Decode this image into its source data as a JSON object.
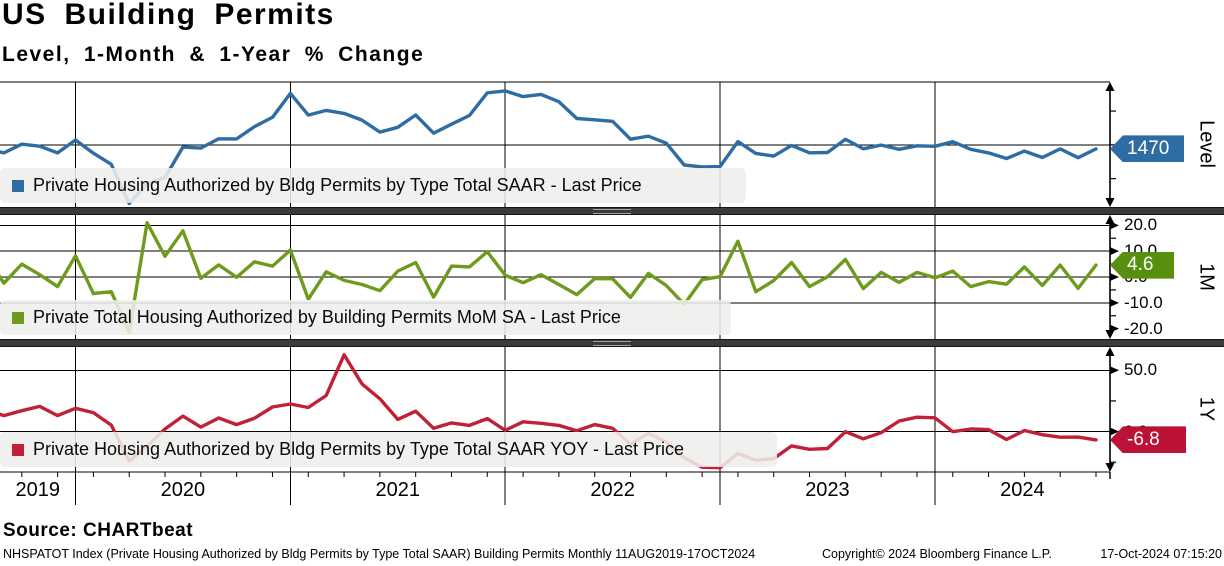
{
  "header": {
    "title": "US Building Permits",
    "subtitle": "Level, 1-Month & 1-Year % Change"
  },
  "source": {
    "label": "Source: CHARTbeat"
  },
  "footer": {
    "security_line": "NHSPATOT Index (Private Housing Authorized by Bldg Permits by Type Total SAAR) Building Permits  Monthly 11AUG2019-17OCT2024",
    "copyright": "Copyright© 2024 Bloomberg Finance L.P.",
    "timestamp": "17-Oct-2024 07:15:20"
  },
  "x_axis": {
    "years": [
      "2019",
      "2020",
      "2021",
      "2022",
      "2023",
      "2024"
    ],
    "range": "11AUG2019-17OCT2024",
    "frequency": "Monthly"
  },
  "chart_data": [
    {
      "type": "line",
      "series_name": "level-line",
      "legend": "Private Housing Authorized by Bldg Permits by Type Total SAAR - Last Price",
      "axis_title": "Level",
      "color": "#2e6da4",
      "tag_color": "#2e6da4",
      "last_price": 1470,
      "last_price_label": "1470",
      "ylim": [
        1040,
        1965
      ],
      "gridlines": [
        1500
      ],
      "ticks": [
        {
          "v": 1750
        },
        {
          "v": 1500
        },
        {
          "v": 1250
        }
      ],
      "x_start": "2019-08",
      "x_end": "2024-10",
      "values": [
        1470,
        1440,
        1505,
        1490,
        1440,
        1536,
        1438,
        1356,
        1066,
        1212,
        1258,
        1483,
        1476,
        1545,
        1544,
        1635,
        1704,
        1881,
        1720,
        1755,
        1733,
        1683,
        1594,
        1630,
        1721,
        1586,
        1653,
        1717,
        1885,
        1899,
        1857,
        1873,
        1819,
        1695,
        1685,
        1674,
        1542,
        1564,
        1512,
        1351,
        1337,
        1339,
        1524,
        1437,
        1417,
        1496,
        1441,
        1443,
        1541,
        1471,
        1498,
        1467,
        1493,
        1489,
        1523,
        1467,
        1440,
        1399,
        1454,
        1406,
        1470,
        1405,
        1470
      ]
    },
    {
      "type": "line",
      "series_name": "mom-line",
      "legend": "Private Total Housing Authorized by Building Permits MoM SA - Last Price",
      "axis_title": "1M",
      "color": "#6e9b1e",
      "tag_color": "#578f0e",
      "last_price": 4.6,
      "last_price_label": "4.6",
      "ylim": [
        -24,
        24
      ],
      "gridlines": [
        20,
        10,
        0,
        -10
      ],
      "ticks": [
        {
          "v": 20,
          "label": "20.0"
        },
        {
          "v": 15
        },
        {
          "v": 10,
          "label": "10.0"
        },
        {
          "v": 5
        },
        {
          "v": 0,
          "label": "0.0"
        },
        {
          "v": -5
        },
        {
          "v": -10,
          "label": "-10.0"
        },
        {
          "v": -15
        },
        {
          "v": -20,
          "label": "-20.0"
        }
      ],
      "x_start": "2019-08",
      "x_end": "2024-10",
      "values": [
        8.2,
        -2.4,
        5.0,
        0.9,
        -3.7,
        8.2,
        -6.4,
        -5.7,
        -21.4,
        21.0,
        8.0,
        17.9,
        -0.5,
        4.7,
        -0.1,
        5.9,
        4.2,
        10.4,
        -8.6,
        2.0,
        -1.3,
        -2.9,
        -5.3,
        2.3,
        5.6,
        -7.8,
        4.2,
        3.9,
        9.8,
        0.7,
        -2.2,
        0.9,
        -2.9,
        -6.8,
        -0.6,
        -0.7,
        -7.9,
        1.4,
        -3.3,
        -10.6,
        -1.0,
        0.1,
        13.8,
        -5.7,
        -1.4,
        5.6,
        -3.7,
        0.1,
        6.8,
        -4.5,
        1.8,
        -2.1,
        1.8,
        -0.3,
        2.3,
        -3.7,
        -1.8,
        -2.8,
        3.9,
        -3.3,
        4.6,
        -4.4,
        4.6
      ]
    },
    {
      "type": "line",
      "series_name": "yoy-line",
      "legend": "Private Housing Authorized by Bldg Permits by Type Total SAAR YOY - Last Price",
      "axis_title": "1Y",
      "color": "#c02038",
      "tag_color": "#bd1238",
      "last_price": -6.8,
      "last_price_label": "-6.8",
      "ylim": [
        -33,
        69
      ],
      "gridlines": [
        50,
        0
      ],
      "ticks": [
        {
          "v": 50,
          "label": "50.0"
        },
        {
          "v": 25
        },
        {
          "v": 0,
          "label": "0.0"
        },
        {
          "v": -25
        }
      ],
      "x_start": "2019-08",
      "x_end": "2024-10",
      "values": [
        18.0,
        13.0,
        17.0,
        20.5,
        13.0,
        19.0,
        15.5,
        5.3,
        -24.0,
        -12.0,
        2.1,
        12.6,
        3.6,
        11.1,
        5.7,
        10.9,
        20.0,
        22.5,
        19.6,
        29.4,
        62.6,
        38.9,
        26.7,
        9.9,
        16.6,
        2.7,
        7.1,
        5.0,
        10.6,
        1.0,
        8.0,
        6.7,
        5.0,
        0.7,
        5.7,
        2.7,
        -10.4,
        -1.4,
        -8.5,
        -21.3,
        -29.1,
        -29.5,
        -17.9,
        -23.3,
        -22.1,
        -11.7,
        -14.5,
        -13.8,
        -0.1,
        -5.9,
        -0.9,
        8.6,
        11.7,
        11.2,
        -0.1,
        2.1,
        1.6,
        -6.5,
        0.9,
        -2.6,
        -4.6,
        -4.5,
        -6.8
      ]
    }
  ]
}
